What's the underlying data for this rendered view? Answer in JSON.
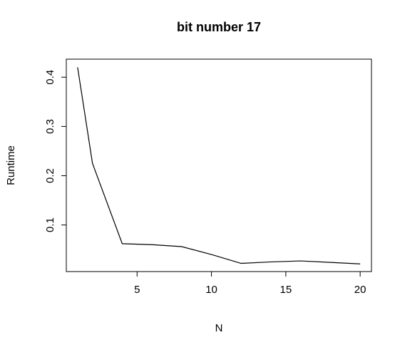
{
  "chart_data": {
    "type": "line",
    "title": "bit number 17",
    "xlabel": "N",
    "ylabel": "Runtime",
    "x": [
      1,
      2,
      4,
      6,
      8,
      10,
      12,
      14,
      16,
      18,
      20
    ],
    "series": [
      {
        "values": [
          0.42,
          0.225,
          0.062,
          0.06,
          0.056,
          0.04,
          0.022,
          0.025,
          0.027,
          0.024,
          0.021
        ]
      }
    ],
    "xlim": [
      0.24,
      20.76
    ],
    "ylim": [
      0.0054,
      0.4366
    ],
    "xticks": [
      5,
      10,
      15,
      20
    ],
    "yticks": [
      0.1,
      0.2,
      0.3,
      0.4
    ],
    "grid": false,
    "legend": "none",
    "line_color": "#000000"
  }
}
